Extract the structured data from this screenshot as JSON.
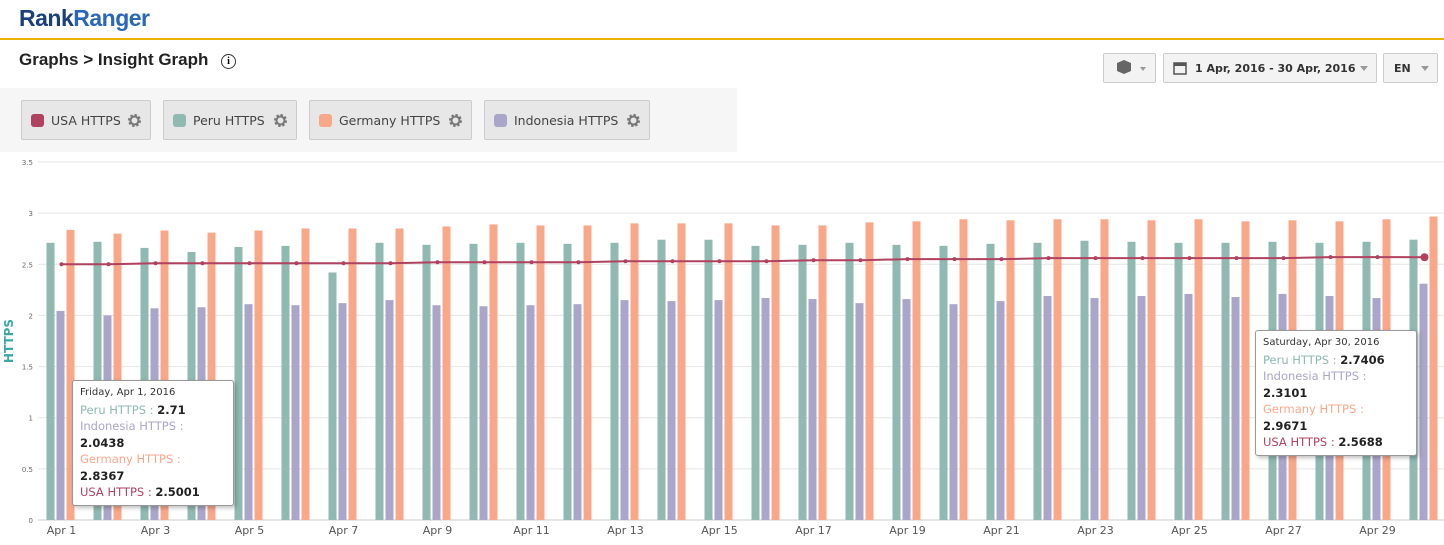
{
  "header": {
    "logo_dark": "Rank",
    "logo_light": "Ranger"
  },
  "breadcrumb": "Graphs > Insight Graph",
  "toolbar": {
    "date_range": "1 Apr, 2016 - 30 Apr, 2016",
    "language": "EN"
  },
  "tooltips": [
    {
      "title": "Friday, Apr 1, 2016"
    },
    {
      "title": "Saturday, Apr 30, 2016"
    }
  ],
  "chart_data": {
    "type": "bar",
    "y_label": "HTTPS",
    "categories": [
      "Apr 1",
      null,
      "Apr 3",
      null,
      "Apr 5",
      null,
      "Apr 7",
      null,
      "Apr 9",
      null,
      "Apr 11",
      null,
      "Apr 13",
      null,
      "Apr 15",
      null,
      "Apr 17",
      null,
      "Apr 19",
      null,
      "Apr 21",
      null,
      "Apr 23",
      null,
      "Apr 25",
      null,
      "Apr 27",
      null,
      "Apr 29",
      null
    ],
    "series": [
      {
        "name": "Peru HTTPS",
        "color": "#8fb9b1",
        "values": [
          2.71,
          2.72,
          2.66,
          2.62,
          2.67,
          2.68,
          2.42,
          2.71,
          2.69,
          2.7,
          2.71,
          2.7,
          2.71,
          2.74,
          2.74,
          2.68,
          2.69,
          2.71,
          2.69,
          2.68,
          2.7,
          2.71,
          2.73,
          2.72,
          2.71,
          2.71,
          2.72,
          2.71,
          2.72,
          2.7406
        ]
      },
      {
        "name": "Indonesia HTTPS",
        "color": "#aaa6c9",
        "values": [
          2.0438,
          2.0,
          2.07,
          2.08,
          2.11,
          2.1,
          2.12,
          2.15,
          2.1,
          2.09,
          2.1,
          2.11,
          2.15,
          2.14,
          2.15,
          2.17,
          2.16,
          2.12,
          2.16,
          2.11,
          2.14,
          2.19,
          2.17,
          2.19,
          2.21,
          2.18,
          2.21,
          2.19,
          2.17,
          2.3101
        ]
      },
      {
        "name": "Germany HTTPS",
        "color": "#f9a789",
        "values": [
          2.8367,
          2.8,
          2.83,
          2.81,
          2.83,
          2.85,
          2.85,
          2.85,
          2.87,
          2.89,
          2.88,
          2.88,
          2.9,
          2.9,
          2.9,
          2.88,
          2.88,
          2.91,
          2.92,
          2.94,
          2.93,
          2.94,
          2.94,
          2.93,
          2.94,
          2.92,
          2.93,
          2.92,
          2.94,
          2.9671
        ]
      },
      {
        "name": "USA HTTPS",
        "color": "#b0415f",
        "type": "line",
        "values": [
          2.5001,
          2.5,
          2.51,
          2.51,
          2.51,
          2.51,
          2.51,
          2.51,
          2.52,
          2.52,
          2.52,
          2.52,
          2.53,
          2.53,
          2.53,
          2.53,
          2.54,
          2.54,
          2.55,
          2.55,
          2.55,
          2.56,
          2.56,
          2.56,
          2.56,
          2.56,
          2.56,
          2.57,
          2.57,
          2.5688
        ]
      }
    ],
    "legend_order": [
      3,
      0,
      2,
      1
    ],
    "ylim": [
      0,
      3.5
    ],
    "yticks": [
      0,
      0.5,
      1,
      1.5,
      2,
      2.5,
      3,
      3.5
    ],
    "grid": true
  }
}
